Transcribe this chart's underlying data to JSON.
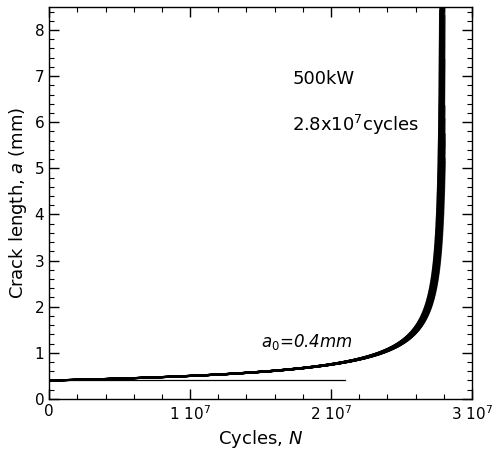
{
  "x_max": 28000000.0,
  "x_plot_max": 30000000.0,
  "a0": 0.4,
  "ylim": [
    0,
    8.5
  ],
  "xlim": [
    0,
    30000000.0
  ],
  "ylabel": "Crack length, $a$ (mm)",
  "xlabel": "Cycles, $N$",
  "line_color": "#000000",
  "background_color": "#ffffff",
  "yticks": [
    0,
    1,
    2,
    3,
    4,
    5,
    6,
    7,
    8
  ],
  "xticks": [
    0,
    10000000.0,
    20000000.0,
    30000000.0
  ],
  "xtick_labels": [
    "0",
    "1 10$^7$",
    "2 10$^7$",
    "3 10$^7$"
  ],
  "paris_m": 6.0,
  "n_lines": 120,
  "line_width": 1.2,
  "line_alpha": 0.4,
  "band_spread": 0.012
}
